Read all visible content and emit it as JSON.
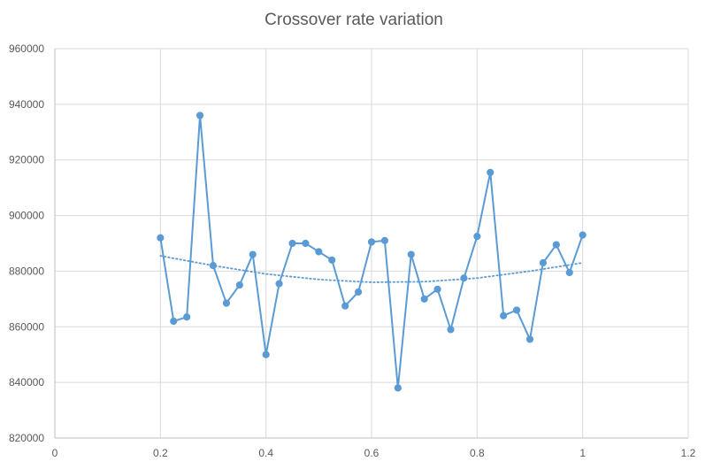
{
  "chart_data": {
    "type": "line",
    "title": "Crossover rate variation",
    "xlabel": "",
    "ylabel": "",
    "xlim": [
      0,
      1.2
    ],
    "ylim": [
      820000,
      960000
    ],
    "x_ticks": [
      "0",
      "0.2",
      "0.4",
      "0.6",
      "0.8",
      "1",
      "1.2"
    ],
    "y_ticks": [
      "820000",
      "840000",
      "860000",
      "880000",
      "900000",
      "920000",
      "940000",
      "960000"
    ],
    "grid": true,
    "legend": "none",
    "series": [
      {
        "color": "#5b9bd5",
        "marker": "circle",
        "x": [
          0.2,
          0.225,
          0.25,
          0.275,
          0.3,
          0.325,
          0.35,
          0.375,
          0.4,
          0.425,
          0.45,
          0.475,
          0.5,
          0.525,
          0.55,
          0.575,
          0.6,
          0.625,
          0.65,
          0.675,
          0.7,
          0.725,
          0.75,
          0.775,
          0.8,
          0.825,
          0.85,
          0.875,
          0.9,
          0.925,
          0.95,
          0.975,
          1.0
        ],
        "y": [
          892000,
          862000,
          863500,
          936000,
          882000,
          868500,
          875000,
          886000,
          850000,
          875500,
          890000,
          890000,
          887000,
          884000,
          867500,
          872500,
          890500,
          891000,
          838000,
          886000,
          870000,
          873500,
          859000,
          877500,
          892500,
          915500,
          864000,
          866000,
          855500,
          883000,
          889500,
          879500,
          893000
        ]
      }
    ],
    "trendline": {
      "type": "polynomial",
      "style": "dotted",
      "color": "#5b9bd5",
      "x": [
        0.2,
        0.3,
        0.4,
        0.5,
        0.6,
        0.7,
        0.8,
        0.9,
        1.0
      ],
      "y": [
        885500,
        882000,
        879000,
        877000,
        876000,
        876200,
        877500,
        880000,
        883000
      ]
    }
  }
}
